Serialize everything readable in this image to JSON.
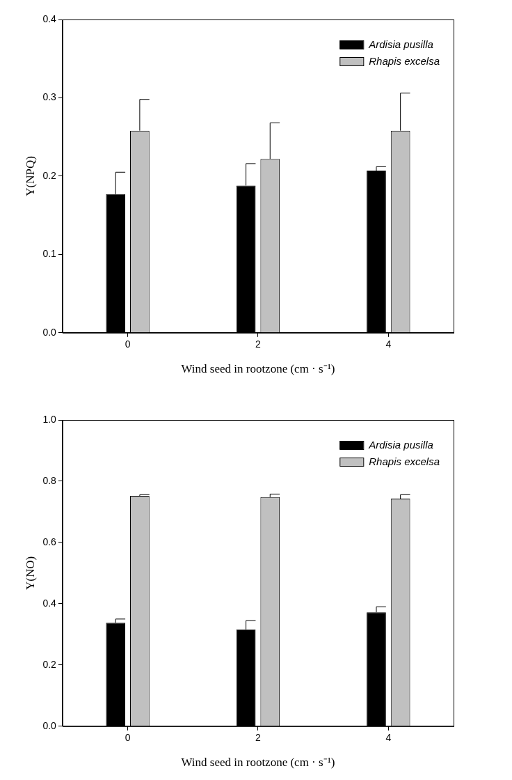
{
  "chart_data": [
    {
      "type": "bar",
      "y_label": "Y(NPQ)",
      "x_label": "Wind seed in rootzone (cm · s⁻¹)",
      "categories": [
        "0",
        "2",
        "4"
      ],
      "series": [
        {
          "name": "Ardisia pusilla",
          "color": "#000000",
          "values": [
            0.177,
            0.188,
            0.207
          ],
          "errors": [
            0.028,
            0.028,
            0.005
          ]
        },
        {
          "name": "Rhapis excelsa",
          "color": "#c0c0c0",
          "values": [
            0.258,
            0.222,
            0.258
          ],
          "errors": [
            0.04,
            0.046,
            0.048
          ]
        }
      ],
      "ylim": [
        0,
        0.4
      ],
      "yticks": [
        {
          "value": 0,
          "label": "0.0"
        },
        0.1,
        0.2,
        0.3,
        0.4
      ],
      "grid": false,
      "legend": "upper right"
    },
    {
      "type": "bar",
      "y_label": "Y(NO)",
      "x_label": "Wind seed in rootzone (cm · s⁻¹)",
      "categories": [
        "0",
        "2",
        "4"
      ],
      "series": [
        {
          "name": "Ardisia pusilla",
          "color": "#000000",
          "values": [
            0.338,
            0.316,
            0.372
          ],
          "errors": [
            0.012,
            0.029,
            0.018
          ]
        },
        {
          "name": "Rhapis excelsa",
          "color": "#c0c0c0",
          "values": [
            0.752,
            0.748,
            0.743
          ],
          "errors": [
            0.004,
            0.01,
            0.013
          ]
        }
      ],
      "ylim": [
        0,
        1.0
      ],
      "yticks": [
        {
          "value": 0,
          "label": "0.0"
        },
        0.2,
        0.4,
        0.6,
        0.8,
        {
          "value": 1,
          "label": "1.0"
        }
      ],
      "grid": false,
      "legend": "upper right"
    }
  ]
}
